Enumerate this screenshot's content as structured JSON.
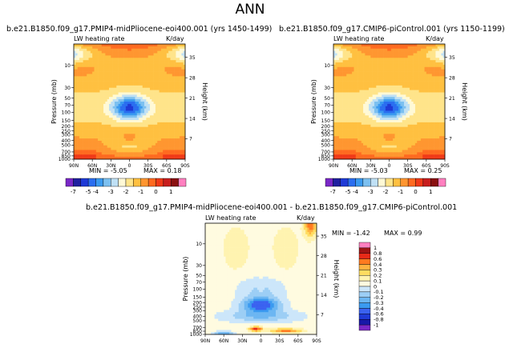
{
  "page_title": "ANN",
  "chart_data": [
    {
      "type": "heatmap",
      "title": "b.e21.B1850.f09_g17.PMIP4-midPliocene-eoi400.001  (yrs 1450-1499)",
      "field_label": "LW heating rate",
      "units": "K/day",
      "ylabel": "Pressure (mb)",
      "ylabel_right": "Height (km)",
      "x_ticks": [
        "90N",
        "60N",
        "30N",
        "0",
        "30S",
        "60S",
        "90S"
      ],
      "y_ticks": [
        "10",
        "30",
        "50",
        "70",
        "100",
        "150",
        "200",
        "250",
        "300",
        "400",
        "500",
        "700",
        "850",
        "1000"
      ],
      "height_ticks": [
        "7",
        "14",
        "21",
        "28",
        "35"
      ],
      "min_label": "MIN = -5.05",
      "max_label": "MAX = 0.18",
      "min": -5.05,
      "max": 0.18,
      "colorbar_ticks": [
        "-7",
        "-5",
        "-4",
        "-3",
        "-2",
        "-1",
        "0",
        "1"
      ]
    },
    {
      "type": "heatmap",
      "title": "b.e21.B1850.f09_g17.CMIP6-piControl.001  (yrs 1150-1199)",
      "field_label": "LW heating rate",
      "units": "K/day",
      "ylabel": "Pressure (mb)",
      "ylabel_right": "Height (km)",
      "x_ticks": [
        "90N",
        "60N",
        "30N",
        "0",
        "30S",
        "60S",
        "90S"
      ],
      "y_ticks": [
        "10",
        "30",
        "50",
        "70",
        "100",
        "150",
        "200",
        "250",
        "300",
        "400",
        "500",
        "700",
        "850",
        "1000"
      ],
      "height_ticks": [
        "7",
        "14",
        "21",
        "28",
        "35"
      ],
      "min_label": "MIN = -5.03",
      "max_label": "MAX = 0.25",
      "min": -5.03,
      "max": 0.25,
      "colorbar_ticks": [
        "-7",
        "-5",
        "-4",
        "-3",
        "-2",
        "-1",
        "0",
        "1"
      ]
    },
    {
      "type": "heatmap",
      "title": "b.e21.B1850.f09_g17.PMIP4-midPliocene-eoi400.001  -  b.e21.B1850.f09_g17.CMIP6-piControl.001",
      "field_label": "LW heating rate",
      "units": "K/day",
      "ylabel": "Pressure (mb)",
      "ylabel_right": "Height (km)",
      "x_ticks": [
        "90N",
        "60N",
        "30N",
        "0",
        "30S",
        "60S",
        "90S"
      ],
      "y_ticks": [
        "10",
        "30",
        "50",
        "70",
        "100",
        "150",
        "200",
        "250",
        "300",
        "400",
        "500",
        "700",
        "850",
        "1000"
      ],
      "height_ticks": [
        "7",
        "14",
        "21",
        "28",
        "35"
      ],
      "min_label": "MIN = -1.42",
      "max_label": "MAX = 0.99",
      "min": -1.42,
      "max": 0.99,
      "colorbar_ticks": [
        "1",
        "0.8",
        "0.6",
        "0.4",
        "0.3",
        "0.2",
        "0.1",
        "0",
        "-0.1",
        "-0.2",
        "-0.3",
        "-0.4",
        "-0.6",
        "-0.8",
        "-1"
      ]
    }
  ]
}
